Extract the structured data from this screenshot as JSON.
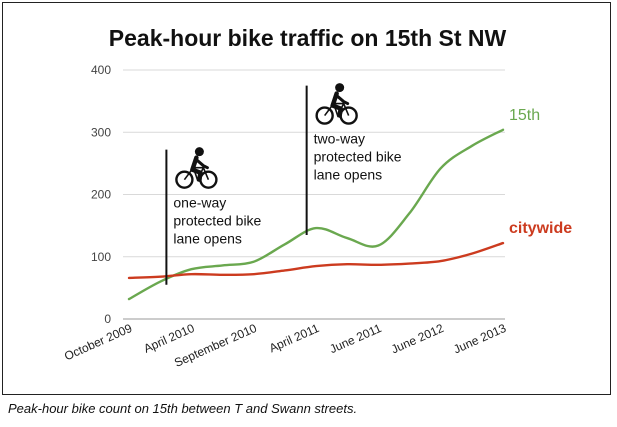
{
  "chart_data": {
    "type": "line",
    "title": "Peak-hour bike traffic on 15th St NW",
    "categories": [
      "October 2009",
      "April 2010",
      "September 2010",
      "April 2011",
      "June 2011",
      "June 2012",
      "June 2013"
    ],
    "series": [
      {
        "name": "15th",
        "color": "#6aa84f",
        "points": [
          {
            "x": 0.0,
            "y": 32
          },
          {
            "x": 0.5,
            "y": 60
          },
          {
            "x": 1.0,
            "y": 80
          },
          {
            "x": 1.5,
            "y": 86
          },
          {
            "x": 2.0,
            "y": 92
          },
          {
            "x": 2.5,
            "y": 120
          },
          {
            "x": 3.0,
            "y": 146
          },
          {
            "x": 3.5,
            "y": 130
          },
          {
            "x": 4.0,
            "y": 118
          },
          {
            "x": 4.5,
            "y": 170
          },
          {
            "x": 5.0,
            "y": 242
          },
          {
            "x": 5.5,
            "y": 278
          },
          {
            "x": 6.0,
            "y": 304
          }
        ]
      },
      {
        "name": "citywide",
        "color": "#cc3b1f",
        "points": [
          {
            "x": 0.0,
            "y": 66
          },
          {
            "x": 0.5,
            "y": 68
          },
          {
            "x": 1.0,
            "y": 72
          },
          {
            "x": 1.5,
            "y": 71
          },
          {
            "x": 2.0,
            "y": 72
          },
          {
            "x": 2.5,
            "y": 78
          },
          {
            "x": 3.0,
            "y": 85
          },
          {
            "x": 3.5,
            "y": 88
          },
          {
            "x": 4.0,
            "y": 87
          },
          {
            "x": 4.5,
            "y": 89
          },
          {
            "x": 5.0,
            "y": 93
          },
          {
            "x": 5.5,
            "y": 105
          },
          {
            "x": 6.0,
            "y": 122
          }
        ]
      }
    ],
    "ylim": [
      0,
      400
    ],
    "yticks": [
      "0",
      "100",
      "200",
      "300",
      "400"
    ],
    "grid": true,
    "annotations": [
      {
        "x": 0.6,
        "y_from": 55,
        "y_to": 272,
        "lines": [
          "one-way",
          "protected bike",
          "lane opens"
        ],
        "icon": "bicycle-icon"
      },
      {
        "x": 2.85,
        "y_from": 135,
        "y_to": 375,
        "lines": [
          "two-way",
          "protected bike",
          "lane opens"
        ],
        "icon": "bicycle-icon"
      }
    ],
    "caption": "Peak-hour bike count on 15th between T and Swann streets."
  }
}
